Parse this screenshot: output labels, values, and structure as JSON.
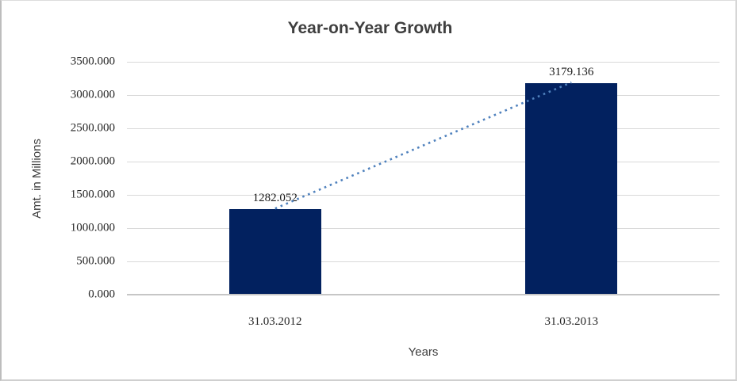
{
  "chart_data": {
    "type": "bar",
    "title": "Year-on-Year Growth",
    "xlabel": "Years",
    "ylabel": "Amt. in Millions",
    "categories": [
      "31.03.2012",
      "31.03.2013"
    ],
    "values": [
      1282.052,
      3179.136
    ],
    "value_labels": [
      "1282.052",
      "3179.136"
    ],
    "ylim": [
      0,
      3500
    ],
    "ytick_step": 500,
    "ytick_labels": [
      "3500.000",
      "3000.000",
      "2500.000",
      "2000.000",
      "1500.000",
      "1000.000",
      "500.000",
      "0.000"
    ],
    "grid": "horizontal",
    "legend": "none",
    "trendline": {
      "type": "linear",
      "style": "dotted",
      "connects": [
        "31.03.2012",
        "31.03.2013"
      ]
    },
    "colors": {
      "bar": "#02215f",
      "trendline": "#4f81bd",
      "gridline": "#d9d9d9",
      "axis_line": "#c6c6c6",
      "title_text": "#3f3f3f",
      "tick_text": "#262626",
      "background": "#ffffff"
    }
  }
}
